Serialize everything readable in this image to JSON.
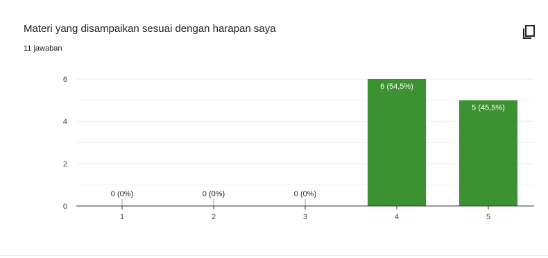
{
  "header": {
    "title": "Materi yang disampaikan sesuai dengan harapan saya",
    "subtitle": "11 jawaban"
  },
  "toolbar": {
    "copy_icon": "copy-icon"
  },
  "colors": {
    "bar": "#3c9130",
    "grid": "#e9e9e9",
    "axis": "#333333",
    "label_text": "#ffffff",
    "tick_text": "#444444"
  },
  "chart_data": {
    "type": "bar",
    "title": "Materi yang disampaikan sesuai dengan harapan saya",
    "xlabel": "",
    "ylabel": "",
    "categories": [
      "1",
      "2",
      "3",
      "4",
      "5"
    ],
    "values": [
      0,
      0,
      0,
      6,
      5
    ],
    "data_labels": [
      "0 (0%)",
      "0 (0%)",
      "0 (0%)",
      "6 (54,5%)",
      "5 (45,5%)"
    ],
    "ylim": [
      0,
      6
    ],
    "y_ticks": [
      0,
      2,
      4,
      6
    ],
    "grid": true,
    "legend": "none"
  }
}
